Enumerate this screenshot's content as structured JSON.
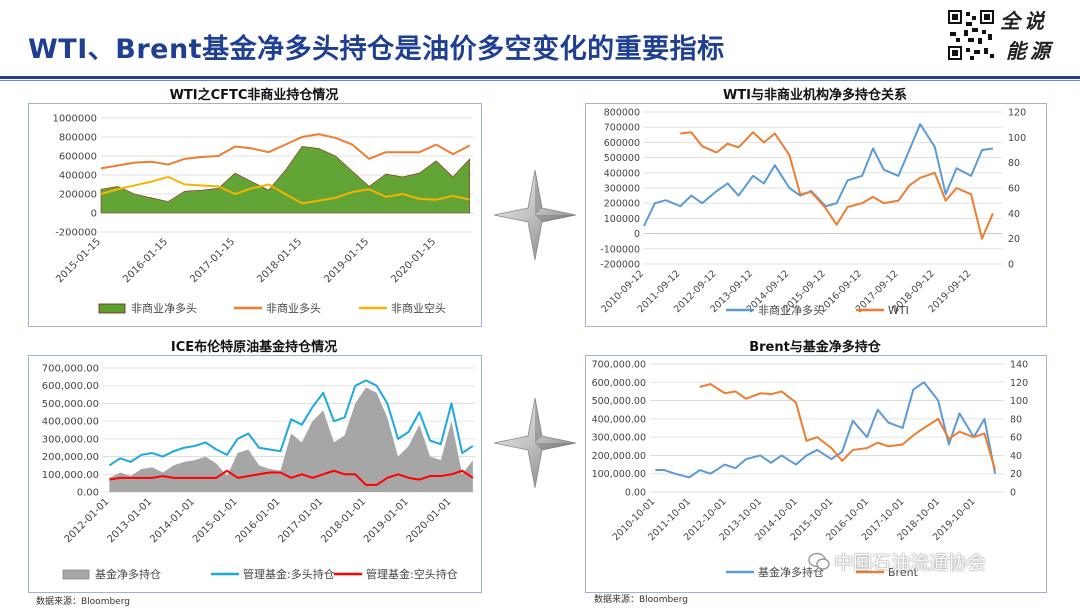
{
  "page": {
    "title": "WTI、Brent基金净多头持仓是油价多空变化的重要指标",
    "logo_line1": "全说",
    "logo_line2": "能源",
    "watermark": "中国石油流通协会",
    "source_left": "数据来源：Bloomberg",
    "source_right": "数据来源：Bloomberg"
  },
  "chart_data": [
    {
      "id": "wti_cftc",
      "type": "area",
      "title": "WTI之CFTC非商业持仓情况",
      "ylim": [
        -200000,
        1000000
      ],
      "yticks": [
        "1000000",
        "800000",
        "600000",
        "400000",
        "200000",
        "0",
        "-200000"
      ],
      "xtick_labels": [
        "2015-01-15",
        "2016-01-15",
        "2017-01-15",
        "2018-01-15",
        "2019-01-15",
        "2020-01-15"
      ],
      "x": [
        2015.0,
        2015.25,
        2015.5,
        2015.75,
        2016.0,
        2016.25,
        2016.5,
        2016.75,
        2017.0,
        2017.25,
        2017.5,
        2017.75,
        2018.0,
        2018.25,
        2018.5,
        2018.75,
        2019.0,
        2019.25,
        2019.5,
        2019.75,
        2020.0,
        2020.25,
        2020.5
      ],
      "series": [
        {
          "name": "非商业净多头",
          "color": "#5aa02c",
          "values": [
            250000,
            280000,
            200000,
            160000,
            120000,
            230000,
            240000,
            260000,
            420000,
            330000,
            240000,
            450000,
            700000,
            680000,
            600000,
            440000,
            280000,
            410000,
            380000,
            420000,
            550000,
            380000,
            570000
          ]
        },
        {
          "name": "非商业多头",
          "color": "#ed7d31",
          "values": [
            470000,
            500000,
            530000,
            540000,
            510000,
            570000,
            590000,
            600000,
            700000,
            680000,
            640000,
            720000,
            800000,
            830000,
            790000,
            720000,
            570000,
            640000,
            640000,
            640000,
            720000,
            620000,
            710000
          ]
        },
        {
          "name": "非商业空头",
          "color": "#f4b400",
          "values": [
            200000,
            250000,
            290000,
            330000,
            380000,
            300000,
            290000,
            280000,
            200000,
            260000,
            300000,
            200000,
            100000,
            130000,
            160000,
            220000,
            250000,
            170000,
            200000,
            150000,
            140000,
            180000,
            140000
          ]
        }
      ]
    },
    {
      "id": "wti_net_long",
      "type": "line",
      "title": "WTI与非商业机构净多持仓关系",
      "ylim": [
        -200000,
        800000
      ],
      "yticks": [
        "800000",
        "700000",
        "600000",
        "500000",
        "400000",
        "300000",
        "200000",
        "100000",
        "0",
        "-100000",
        "-200000"
      ],
      "y2lim": [
        0,
        120
      ],
      "y2ticks": [
        "120",
        "100",
        "80",
        "60",
        "40",
        "20",
        "0"
      ],
      "xtick_labels": [
        "2010-09-12",
        "2011-09-12",
        "2012-09-12",
        "2013-09-12",
        "2014-09-12",
        "2015-09-12",
        "2016-09-12",
        "2017-09-12",
        "2018-09-12",
        "2019-09-12"
      ],
      "x": [
        2010.7,
        2011.0,
        2011.3,
        2011.7,
        2012.0,
        2012.3,
        2012.7,
        2013.0,
        2013.3,
        2013.7,
        2014.0,
        2014.3,
        2014.7,
        2015.0,
        2015.3,
        2015.7,
        2016.0,
        2016.3,
        2016.7,
        2017.0,
        2017.3,
        2017.7,
        2018.0,
        2018.3,
        2018.7,
        2019.0,
        2019.3,
        2019.7,
        2020.0,
        2020.3
      ],
      "series": [
        {
          "name": "非商业净多头",
          "axis": "left",
          "color": "#5b9bd5",
          "values": [
            50000,
            200000,
            220000,
            180000,
            250000,
            200000,
            280000,
            330000,
            250000,
            380000,
            330000,
            450000,
            300000,
            250000,
            280000,
            180000,
            200000,
            350000,
            380000,
            560000,
            420000,
            380000,
            550000,
            720000,
            570000,
            260000,
            430000,
            380000,
            550000,
            560000
          ]
        },
        {
          "name": "WTI",
          "axis": "right",
          "color": "#ed7d31",
          "values": [
            null,
            null,
            null,
            103,
            104,
            93,
            88,
            95,
            92,
            104,
            96,
            103,
            86,
            55,
            57,
            44,
            31,
            45,
            48,
            53,
            48,
            50,
            62,
            68,
            72,
            50,
            60,
            55,
            20,
            40
          ]
        }
      ]
    },
    {
      "id": "ice_brent",
      "type": "area",
      "title": "ICE布伦特原油基金持仓情况",
      "ylim": [
        0,
        700000
      ],
      "yticks": [
        "700,000.00",
        "600,000.00",
        "500,000.00",
        "400,000.00",
        "300,000.00",
        "200,000.00",
        "100,000.00",
        "0.00"
      ],
      "xtick_labels": [
        "2012-01-01",
        "2013-01-01",
        "2014-01-01",
        "2015-01-01",
        "2016-01-01",
        "2017-01-01",
        "2018-01-01",
        "2019-01-01",
        "2020-01-01"
      ],
      "x": [
        2012.0,
        2012.25,
        2012.5,
        2012.75,
        2013.0,
        2013.25,
        2013.5,
        2013.75,
        2014.0,
        2014.25,
        2014.5,
        2014.75,
        2015.0,
        2015.25,
        2015.5,
        2015.75,
        2016.0,
        2016.25,
        2016.5,
        2016.75,
        2017.0,
        2017.25,
        2017.5,
        2017.75,
        2018.0,
        2018.25,
        2018.5,
        2018.75,
        2019.0,
        2019.25,
        2019.5,
        2019.75,
        2020.0,
        2020.25,
        2020.5
      ],
      "series": [
        {
          "name": "基金净多持仓",
          "color": "#a6a6a6",
          "values": [
            80000,
            110000,
            90000,
            130000,
            140000,
            110000,
            150000,
            170000,
            180000,
            200000,
            160000,
            90000,
            220000,
            240000,
            150000,
            130000,
            120000,
            330000,
            280000,
            400000,
            460000,
            280000,
            320000,
            500000,
            590000,
            560000,
            420000,
            200000,
            260000,
            380000,
            200000,
            180000,
            400000,
            100000,
            180000
          ]
        },
        {
          "name": "管理基金:多头持仓",
          "color": "#1ca8e0",
          "values": [
            150000,
            190000,
            170000,
            210000,
            220000,
            200000,
            230000,
            250000,
            260000,
            280000,
            240000,
            210000,
            300000,
            330000,
            250000,
            240000,
            230000,
            410000,
            380000,
            480000,
            560000,
            400000,
            420000,
            600000,
            630000,
            600000,
            500000,
            300000,
            340000,
            450000,
            290000,
            270000,
            500000,
            220000,
            260000
          ]
        },
        {
          "name": "管理基金:空头持仓",
          "color": "#ff0000",
          "values": [
            70000,
            80000,
            80000,
            80000,
            80000,
            90000,
            80000,
            80000,
            80000,
            80000,
            80000,
            120000,
            80000,
            90000,
            100000,
            110000,
            110000,
            80000,
            100000,
            80000,
            100000,
            120000,
            100000,
            100000,
            40000,
            40000,
            80000,
            100000,
            80000,
            70000,
            90000,
            90000,
            100000,
            120000,
            80000
          ]
        }
      ]
    },
    {
      "id": "brent_net_long",
      "type": "line",
      "title": "Brent与基金净多持仓",
      "ylim": [
        0,
        700000
      ],
      "yticks": [
        "700,000.00",
        "600,000.00",
        "500,000.00",
        "400,000.00",
        "300,000.00",
        "200,000.00",
        "100,000.00",
        "0.00"
      ],
      "y2lim": [
        0,
        140
      ],
      "y2ticks": [
        "140",
        "120",
        "100",
        "80",
        "60",
        "40",
        "20",
        "0"
      ],
      "xtick_labels": [
        "2010-10-01",
        "2011-10-01",
        "2012-10-01",
        "2013-10-01",
        "2014-10-01",
        "2015-10-01",
        "2016-10-01",
        "2017-10-01",
        "2018-10-01",
        "2019-10-01"
      ],
      "x": [
        2010.75,
        2011.0,
        2011.3,
        2011.7,
        2012.0,
        2012.3,
        2012.7,
        2013.0,
        2013.3,
        2013.7,
        2014.0,
        2014.3,
        2014.7,
        2015.0,
        2015.3,
        2015.7,
        2016.0,
        2016.3,
        2016.7,
        2017.0,
        2017.3,
        2017.7,
        2018.0,
        2018.3,
        2018.7,
        2019.0,
        2019.3,
        2019.7,
        2020.0,
        2020.3
      ],
      "series": [
        {
          "name": "基金净多持仓",
          "axis": "left",
          "color": "#5b9bd5",
          "values": [
            120000,
            120000,
            100000,
            80000,
            120000,
            100000,
            150000,
            130000,
            180000,
            200000,
            160000,
            200000,
            150000,
            200000,
            230000,
            180000,
            220000,
            390000,
            300000,
            450000,
            380000,
            350000,
            560000,
            600000,
            500000,
            260000,
            430000,
            300000,
            400000,
            100000
          ]
        },
        {
          "name": "Brent",
          "axis": "right",
          "color": "#ed7d31",
          "values": [
            null,
            null,
            null,
            null,
            115,
            118,
            108,
            110,
            102,
            108,
            107,
            110,
            98,
            56,
            60,
            48,
            34,
            46,
            48,
            54,
            50,
            52,
            62,
            70,
            80,
            58,
            66,
            60,
            64,
            24
          ]
        }
      ]
    }
  ]
}
